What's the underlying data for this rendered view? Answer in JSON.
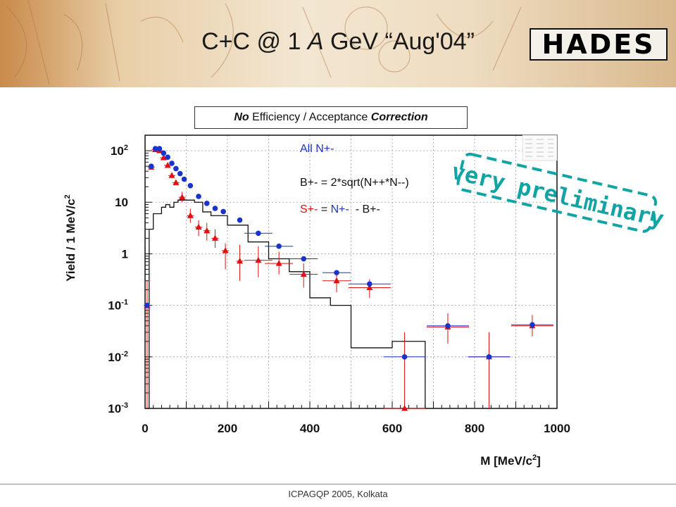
{
  "slide": {
    "title_prefix": "C+C @ 1 ",
    "title_italic": "A",
    "title_suffix": " GeV “Aug'04”",
    "logo_text": "HADES",
    "footer": "ICPAGQP 2005, Kolkata",
    "banner_colors": [
      "#c98a4a",
      "#f3e6d2",
      "#d9b98e"
    ]
  },
  "note": {
    "bold_1": "No",
    "middle": " Efficiency / Acceptance ",
    "bold_2": "Correction"
  },
  "stamp": {
    "text": "very preliminary",
    "color": "#12a4a4"
  },
  "chart_data": {
    "type": "scatter",
    "title": "",
    "xlabel": "M [MeV/c²]",
    "ylabel": "Yield / 1 MeV/c²",
    "xlim": [
      0,
      1000
    ],
    "ylim": [
      0.001,
      200
    ],
    "y_scale": "log",
    "x_ticks": [
      "0",
      "200",
      "400",
      "600",
      "800",
      "1000"
    ],
    "y_ticks": [
      {
        "base": "10",
        "exp": "2",
        "value": 100
      },
      {
        "base": "10",
        "exp": "",
        "value": 10
      },
      {
        "base": "1",
        "exp": "",
        "value": 1
      },
      {
        "base": "10",
        "exp": "-1",
        "value": 0.1
      },
      {
        "base": "10",
        "exp": "-2",
        "value": 0.01
      },
      {
        "base": "10",
        "exp": "-3",
        "value": 0.001
      }
    ],
    "grid": true,
    "legend": {
      "all": "All N+-",
      "bg": "B+- = 2*sqrt(N++*N--)",
      "sig_parts": [
        {
          "text": "S+-",
          "color": "#e01010"
        },
        {
          "text": " = ",
          "color": "#111111"
        },
        {
          "text": "N+-",
          "color": "#1a33cc"
        },
        {
          "text": "  - B+-",
          "color": "#111111"
        }
      ]
    },
    "series": [
      {
        "name": "All N+-",
        "color": "#1a33cc",
        "marker": "circle",
        "points": [
          {
            "x": 5,
            "y": 0.1
          },
          {
            "x": 15,
            "y": 50
          },
          {
            "x": 25,
            "y": 110
          },
          {
            "x": 35,
            "y": 110
          },
          {
            "x": 45,
            "y": 90
          },
          {
            "x": 55,
            "y": 75
          },
          {
            "x": 65,
            "y": 57
          },
          {
            "x": 75,
            "y": 45
          },
          {
            "x": 85,
            "y": 36
          },
          {
            "x": 95,
            "y": 28
          },
          {
            "x": 110,
            "y": 21
          },
          {
            "x": 130,
            "y": 13
          },
          {
            "x": 150,
            "y": 9.5
          },
          {
            "x": 170,
            "y": 7.6
          },
          {
            "x": 190,
            "y": 6.6
          },
          {
            "x": 230,
            "y": 4.5
          },
          {
            "x": 275,
            "y": 2.5
          },
          {
            "x": 325,
            "y": 1.4
          },
          {
            "x": 385,
            "y": 0.8
          },
          {
            "x": 465,
            "y": 0.43
          },
          {
            "x": 545,
            "y": 0.26
          },
          {
            "x": 630,
            "y": 0.01
          },
          {
            "x": 735,
            "y": 0.04
          },
          {
            "x": 835,
            "y": 0.01
          },
          {
            "x": 940,
            "y": 0.042
          }
        ]
      },
      {
        "name": "S+- = N+- - B+-",
        "color": "#e01010",
        "marker": "triangle",
        "points": [
          {
            "x": 5,
            "y": 0.1,
            "err": [
              0.001,
              0.3
            ]
          },
          {
            "x": 15,
            "y": 48
          },
          {
            "x": 25,
            "y": 105
          },
          {
            "x": 35,
            "y": 100
          },
          {
            "x": 45,
            "y": 73
          },
          {
            "x": 55,
            "y": 52
          },
          {
            "x": 65,
            "y": 33
          },
          {
            "x": 75,
            "y": 24
          },
          {
            "x": 90,
            "y": 12.5,
            "err": [
              10,
              16
            ]
          },
          {
            "x": 110,
            "y": 5.5,
            "err": [
              4,
              7.5
            ]
          },
          {
            "x": 130,
            "y": 3.3,
            "err": [
              2.2,
              4.5
            ]
          },
          {
            "x": 150,
            "y": 2.8,
            "err": [
              1.8,
              4
            ]
          },
          {
            "x": 170,
            "y": 2.0,
            "err": [
              1.3,
              3
            ]
          },
          {
            "x": 195,
            "y": 1.15,
            "err": [
              0.5,
              1.6
            ]
          },
          {
            "x": 230,
            "y": 0.72,
            "err": [
              0.3,
              1.5
            ]
          },
          {
            "x": 275,
            "y": 0.75,
            "err": [
              0.35,
              1.4
            ]
          },
          {
            "x": 325,
            "y": 0.65,
            "err": [
              0.4,
              1.1
            ]
          },
          {
            "x": 385,
            "y": 0.4,
            "err": [
              0.22,
              0.65
            ]
          },
          {
            "x": 465,
            "y": 0.3,
            "err": [
              0.18,
              0.45
            ]
          },
          {
            "x": 545,
            "y": 0.22,
            "err": [
              0.14,
              0.32
            ]
          },
          {
            "x": 630,
            "y": 0.001,
            "err": [
              0.001,
              0.03
            ]
          },
          {
            "x": 735,
            "y": 0.038,
            "err": [
              0.018,
              0.07
            ]
          },
          {
            "x": 835,
            "y": 0.01,
            "err": [
              0.001,
              0.03
            ]
          },
          {
            "x": 940,
            "y": 0.04,
            "err": [
              0.025,
              0.065
            ]
          }
        ]
      },
      {
        "name": "B+- = 2*sqrt(N++*N--)",
        "color": "#111111",
        "type": "step",
        "bins": [
          {
            "x0": 0,
            "x1": 10,
            "y": 0.001
          },
          {
            "x0": 10,
            "x1": 20,
            "y": 3
          },
          {
            "x0": 20,
            "x1": 30,
            "y": 6
          },
          {
            "x0": 30,
            "x1": 40,
            "y": 6
          },
          {
            "x0": 40,
            "x1": 50,
            "y": 8
          },
          {
            "x0": 50,
            "x1": 60,
            "y": 9
          },
          {
            "x0": 60,
            "x1": 70,
            "y": 8
          },
          {
            "x0": 70,
            "x1": 80,
            "y": 10
          },
          {
            "x0": 80,
            "x1": 100,
            "y": 11
          },
          {
            "x0": 100,
            "x1": 120,
            "y": 11
          },
          {
            "x0": 120,
            "x1": 140,
            "y": 10
          },
          {
            "x0": 140,
            "x1": 160,
            "y": 6.5
          },
          {
            "x0": 160,
            "x1": 180,
            "y": 5.5
          },
          {
            "x0": 180,
            "x1": 200,
            "y": 5.5
          },
          {
            "x0": 200,
            "x1": 250,
            "y": 3.6
          },
          {
            "x0": 250,
            "x1": 300,
            "y": 1.7
          },
          {
            "x0": 300,
            "x1": 350,
            "y": 0.8
          },
          {
            "x0": 350,
            "x1": 400,
            "y": 0.45
          },
          {
            "x0": 400,
            "x1": 450,
            "y": 0.14
          },
          {
            "x0": 450,
            "x1": 500,
            "y": 0.1
          },
          {
            "x0": 500,
            "x1": 600,
            "y": 0.015
          },
          {
            "x0": 600,
            "x1": 680,
            "y": 0.02
          },
          {
            "x0": 680,
            "x1": 680,
            "y": 0.001
          }
        ]
      }
    ]
  }
}
